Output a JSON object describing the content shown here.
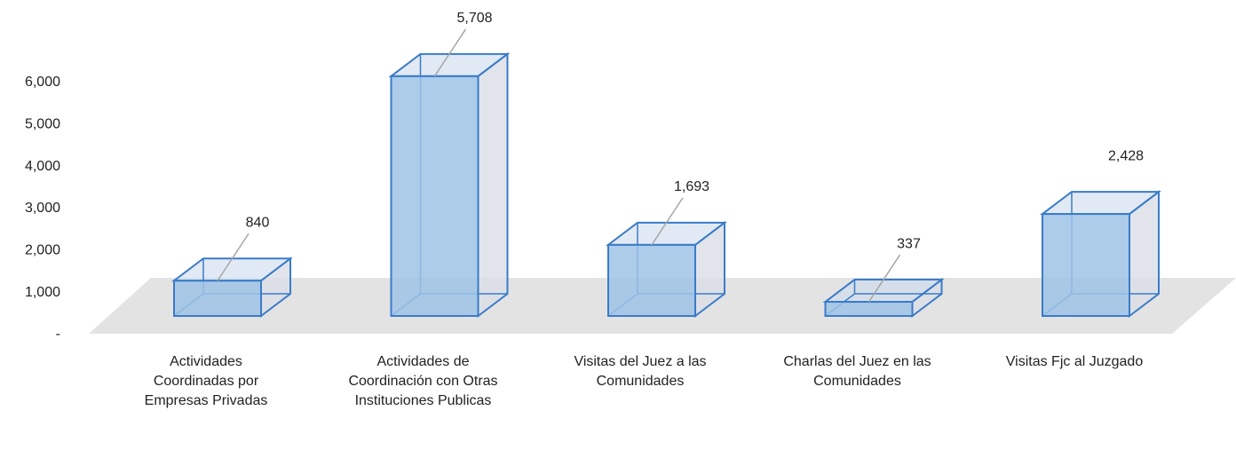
{
  "chart_data": {
    "type": "bar3d",
    "categories": [
      "Actividades Coordinadas por Empresas Privadas",
      "Actividades de Coordinación con Otras Instituciones Publicas",
      "Visitas del Juez a las Comunidades",
      "Charlas del Juez en las Comunidades",
      "Visitas Fjc al Juzgado"
    ],
    "values": [
      840,
      5708,
      1693,
      337,
      2428
    ],
    "value_labels": [
      "840",
      "5,708",
      "1,693",
      "337",
      "2,428"
    ],
    "color": "#9dc3e6",
    "ylim": [
      0,
      6000
    ],
    "yticks": [
      {
        "value": 0,
        "label": "-"
      },
      {
        "value": 1000,
        "label": "1,000"
      },
      {
        "value": 2000,
        "label": "2,000"
      },
      {
        "value": 3000,
        "label": "3,000"
      },
      {
        "value": 4000,
        "label": "4,000"
      },
      {
        "value": 5000,
        "label": "5,000"
      },
      {
        "value": 6000,
        "label": "6,000"
      }
    ]
  }
}
